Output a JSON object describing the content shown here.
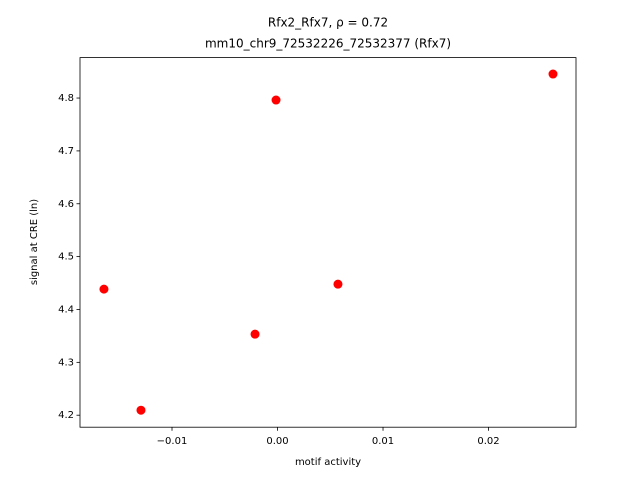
{
  "chart_data": {
    "type": "scatter",
    "title": "Rfx2_Rfx7, ρ = 0.72",
    "subtitle": "mm10_chr9_72532226_72532377 (Rfx7)",
    "x_label": "motif activity",
    "y_label": "signal at CRE (ln)",
    "color": "#ff0000",
    "series": [
      {
        "x": [
          -0.01645,
          -0.01294,
          -0.00213,
          -0.00014,
          0.00573,
          0.02611
        ],
        "values": [
          4.4385,
          4.2094,
          4.3533,
          4.7962,
          4.4479,
          4.8454
        ]
      }
    ],
    "xlim": [
      -0.01872,
      0.02829
    ],
    "ylim": [
      4.1773,
      4.8765
    ],
    "xticks": [
      {
        "value": -0.01,
        "label": "−0.01"
      },
      {
        "value": 0,
        "label": "0.00"
      },
      0.01,
      0.02
    ],
    "yticks": [
      4.2,
      4.3,
      4.4,
      4.5,
      4.6,
      4.7,
      4.8
    ],
    "grid": false
  }
}
